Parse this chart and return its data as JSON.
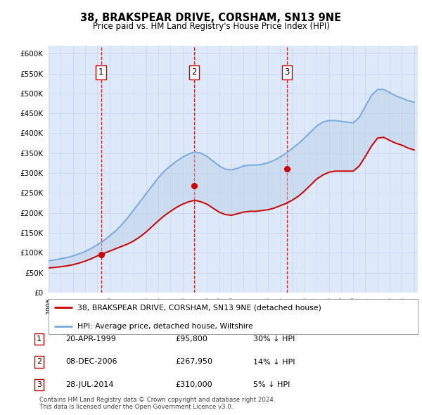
{
  "title": "38, BRAKSPEAR DRIVE, CORSHAM, SN13 9NE",
  "subtitle": "Price paid vs. HM Land Registry's House Price Index (HPI)",
  "ylim": [
    0,
    620000
  ],
  "yticks": [
    0,
    50000,
    100000,
    150000,
    200000,
    250000,
    300000,
    350000,
    400000,
    450000,
    500000,
    550000,
    600000
  ],
  "background_color": "#dde8f8",
  "legend_label_red": "38, BRAKSPEAR DRIVE, CORSHAM, SN13 9NE (detached house)",
  "legend_label_blue": "HPI: Average price, detached house, Wiltshire",
  "footnote": "Contains HM Land Registry data © Crown copyright and database right 2024.\nThis data is licensed under the Open Government Licence v3.0.",
  "transactions": [
    {
      "num": 1,
      "date": "20-APR-1999",
      "price": 95800,
      "pct": "30%",
      "dir": "↓",
      "year": 1999.3
    },
    {
      "num": 2,
      "date": "08-DEC-2006",
      "price": 267950,
      "pct": "14%",
      "dir": "↓",
      "year": 2006.93
    },
    {
      "num": 3,
      "date": "28-JUL-2014",
      "price": 310000,
      "pct": "5%",
      "dir": "↓",
      "year": 2014.54
    }
  ],
  "hpi_x": [
    1995.0,
    1995.5,
    1996.0,
    1996.5,
    1997.0,
    1997.5,
    1998.0,
    1998.5,
    1999.0,
    1999.5,
    2000.0,
    2000.5,
    2001.0,
    2001.5,
    2002.0,
    2002.5,
    2003.0,
    2003.5,
    2004.0,
    2004.5,
    2005.0,
    2005.5,
    2006.0,
    2006.5,
    2007.0,
    2007.5,
    2008.0,
    2008.5,
    2009.0,
    2009.5,
    2010.0,
    2010.5,
    2011.0,
    2011.5,
    2012.0,
    2012.5,
    2013.0,
    2013.5,
    2014.0,
    2014.5,
    2015.0,
    2015.5,
    2016.0,
    2016.5,
    2017.0,
    2017.5,
    2018.0,
    2018.5,
    2019.0,
    2019.5,
    2020.0,
    2020.5,
    2021.0,
    2021.5,
    2022.0,
    2022.5,
    2023.0,
    2023.5,
    2024.0,
    2024.5,
    2025.0
  ],
  "hpi_y": [
    80000,
    82000,
    85000,
    88000,
    92000,
    97000,
    103000,
    111000,
    120000,
    130000,
    142000,
    155000,
    170000,
    188000,
    208000,
    228000,
    248000,
    268000,
    288000,
    305000,
    318000,
    330000,
    340000,
    348000,
    353000,
    350000,
    342000,
    330000,
    318000,
    310000,
    308000,
    312000,
    318000,
    320000,
    320000,
    322000,
    326000,
    332000,
    340000,
    350000,
    362000,
    374000,
    388000,
    403000,
    418000,
    428000,
    432000,
    432000,
    430000,
    428000,
    426000,
    440000,
    468000,
    495000,
    510000,
    510000,
    502000,
    494000,
    488000,
    482000,
    478000
  ],
  "red_x": [
    1995.0,
    1995.5,
    1996.0,
    1996.5,
    1997.0,
    1997.5,
    1998.0,
    1998.5,
    1999.0,
    1999.5,
    2000.0,
    2000.5,
    2001.0,
    2001.5,
    2002.0,
    2002.5,
    2003.0,
    2003.5,
    2004.0,
    2004.5,
    2005.0,
    2005.5,
    2006.0,
    2006.5,
    2007.0,
    2007.5,
    2008.0,
    2008.5,
    2009.0,
    2009.5,
    2010.0,
    2010.5,
    2011.0,
    2011.5,
    2012.0,
    2012.5,
    2013.0,
    2013.5,
    2014.0,
    2014.5,
    2015.0,
    2015.5,
    2016.0,
    2016.5,
    2017.0,
    2017.5,
    2018.0,
    2018.5,
    2019.0,
    2019.5,
    2020.0,
    2020.5,
    2021.0,
    2021.5,
    2022.0,
    2022.5,
    2023.0,
    2023.5,
    2024.0,
    2024.5,
    2025.0
  ],
  "red_y": [
    62000,
    63000,
    65000,
    67000,
    70000,
    74000,
    79000,
    85000,
    92000,
    98000,
    104000,
    110000,
    116000,
    122000,
    130000,
    140000,
    152000,
    166000,
    180000,
    193000,
    204000,
    214000,
    222000,
    228000,
    232000,
    228000,
    222000,
    212000,
    202000,
    196000,
    194000,
    198000,
    202000,
    204000,
    204000,
    206000,
    208000,
    212000,
    218000,
    224000,
    232000,
    242000,
    255000,
    270000,
    285000,
    295000,
    302000,
    305000,
    305000,
    305000,
    305000,
    318000,
    342000,
    368000,
    388000,
    390000,
    382000,
    375000,
    370000,
    363000,
    358000
  ],
  "red_color": "#cc0000",
  "blue_color": "#7aaadd",
  "fill_color": "#b8cfe8",
  "grid_color": "#c8d8ee",
  "dashed_color": "#cc0000",
  "box_color": "#cc0000"
}
